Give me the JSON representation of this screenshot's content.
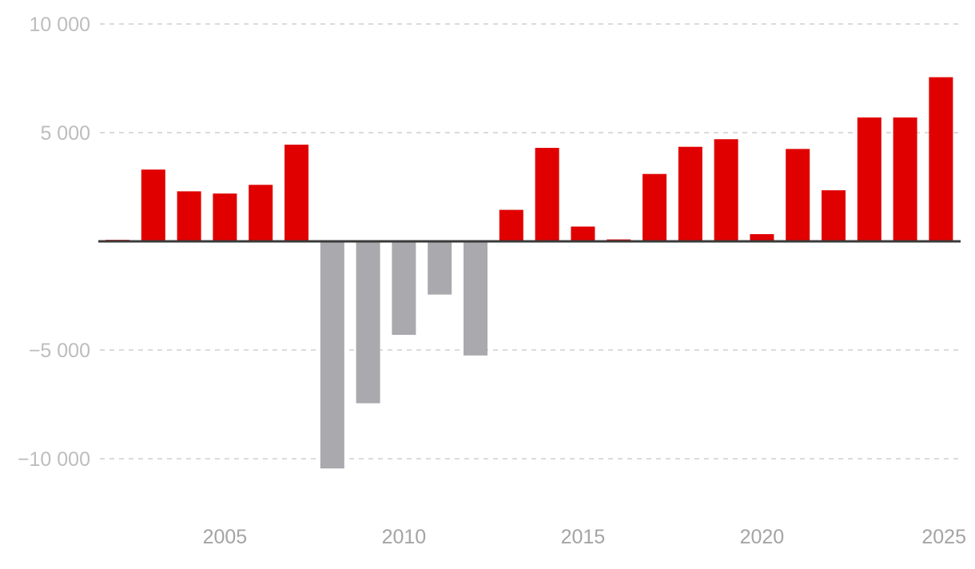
{
  "chart_data": {
    "type": "bar",
    "title": "",
    "xlabel": "",
    "ylabel": "",
    "x": [
      2002,
      2003,
      2004,
      2005,
      2006,
      2007,
      2008,
      2009,
      2010,
      2011,
      2012,
      2013,
      2014,
      2015,
      2016,
      2017,
      2018,
      2019,
      2020,
      2021,
      2022,
      2023,
      2024,
      2025
    ],
    "values": [
      70,
      3300,
      2300,
      2200,
      2600,
      4450,
      -10450,
      -7450,
      -4300,
      -2450,
      -5250,
      1450,
      4300,
      680,
      90,
      3100,
      4350,
      4700,
      330,
      4250,
      2350,
      5700,
      5700,
      7550
    ],
    "ylim": [
      -11500,
      10000
    ],
    "yticks": [
      10000,
      5000,
      -5000,
      -10000
    ],
    "ytick_labels": [
      "10 000",
      "5 000",
      "−5 000",
      "−10 000"
    ],
    "xticks": [
      2005,
      2010,
      2015,
      2020,
      2025
    ],
    "xtick_labels": [
      "2005",
      "2010",
      "2015",
      "2020",
      "2025"
    ],
    "grid": true,
    "colors": {
      "positive": "#e00000",
      "negative": "#aaa9ad",
      "zero_line": "#3a3a3a",
      "grid": "#cfcfcf"
    }
  }
}
